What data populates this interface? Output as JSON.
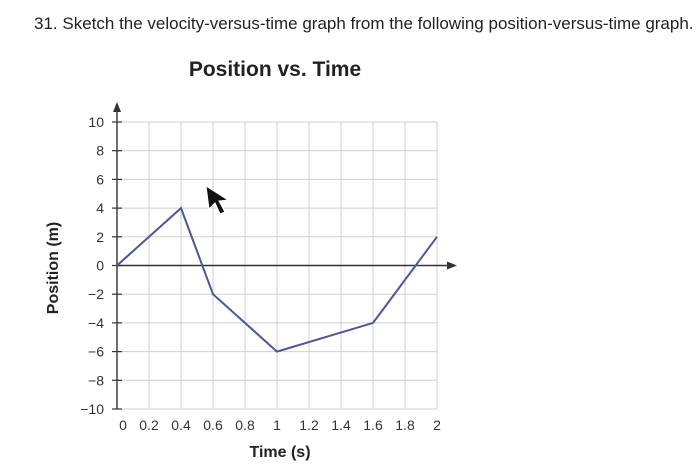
{
  "question": {
    "number": "31",
    "text": ". Sketch the velocity-versus-time graph from the following position-versus-time graph."
  },
  "chart_data": {
    "type": "line",
    "title": "Position vs. Time",
    "xlabel": "Time (s)",
    "ylabel": "Position (m)",
    "xlim": [
      0,
      2
    ],
    "ylim": [
      -10,
      10
    ],
    "x_ticks": [
      "0",
      "0.2",
      "0.4",
      "0.6",
      "0.8",
      "1",
      "1.2",
      "1.4",
      "1.6",
      "1.8",
      "2"
    ],
    "y_ticks": [
      "10",
      "8",
      "6",
      "4",
      "2",
      "0",
      "−2",
      "−4",
      "−6",
      "−8",
      "−10"
    ],
    "grid": true,
    "series": [
      {
        "x": [
          0,
          0.4,
          0.6,
          1.0,
          1.6,
          2.0
        ],
        "y": [
          0,
          4,
          -2,
          -6,
          -4,
          2
        ],
        "color": "#4a5899"
      }
    ]
  }
}
